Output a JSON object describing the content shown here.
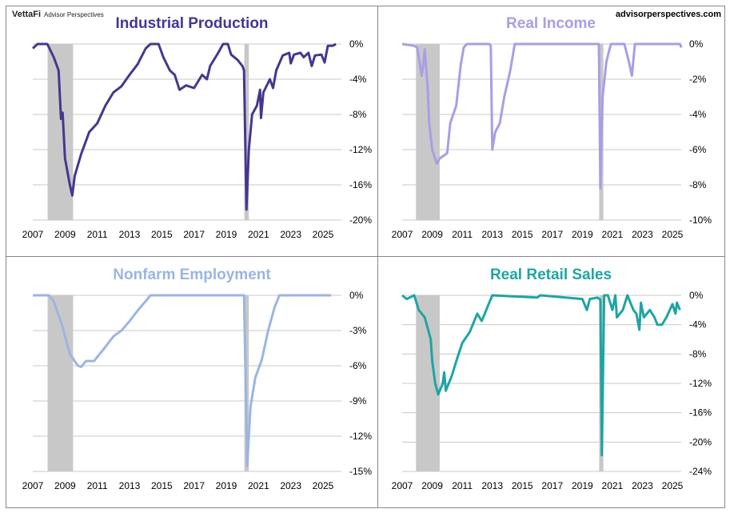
{
  "brand": {
    "logo": "VettaFi",
    "tagline": "Advisor Perspectives",
    "site": "advisorperspectives.com"
  },
  "recessions": [
    [
      2007.92,
      2009.5
    ],
    [
      2020.12,
      2020.4
    ]
  ],
  "chart_data": [
    {
      "type": "line",
      "title": "Industrial Production",
      "color": "#43388e",
      "xlim": [
        2007,
        2025.9
      ],
      "ylim": [
        -20,
        0
      ],
      "yticks": [
        0,
        -4,
        -8,
        -12,
        -16,
        -20
      ],
      "ytick_labels": [
        "0%",
        "-4%",
        "-8%",
        "-12%",
        "-16%",
        "-20%"
      ],
      "xticks": [
        "2007",
        "2009",
        "2011",
        "2013",
        "2015",
        "2017",
        "2019",
        "2021",
        "2023",
        "2025"
      ],
      "x": [
        2007,
        2007.3,
        2007.9,
        2008.3,
        2008.6,
        2008.75,
        2008.85,
        2009.0,
        2009.3,
        2009.45,
        2009.6,
        2010,
        2010.5,
        2011,
        2011.5,
        2012,
        2012.5,
        2013,
        2013.5,
        2014,
        2014.3,
        2014.8,
        2015.1,
        2015.5,
        2015.8,
        2016.1,
        2016.5,
        2017,
        2017.5,
        2017.8,
        2018,
        2018.5,
        2018.8,
        2019.1,
        2019.3,
        2019.7,
        2020.0,
        2020.1,
        2020.25,
        2020.4,
        2020.6,
        2020.9,
        2021.1,
        2021.15,
        2021.3,
        2021.7,
        2021.9,
        2022.1,
        2022.5,
        2022.9,
        2023.0,
        2023.2,
        2023.6,
        2023.8,
        2024.1,
        2024.3,
        2024.5,
        2024.9,
        2025.1,
        2025.3,
        2025.6,
        2025.8
      ],
      "y": [
        -0.5,
        0,
        0,
        -1.5,
        -3,
        -8.5,
        -7.8,
        -13,
        -16,
        -17.2,
        -15,
        -12.5,
        -10,
        -9,
        -7,
        -5.5,
        -4.8,
        -3.5,
        -2.3,
        -0.5,
        0,
        0,
        -1.5,
        -3,
        -3.5,
        -5.2,
        -4.7,
        -5,
        -3.5,
        -4,
        -2.5,
        -1,
        0,
        0,
        -1.2,
        -1.8,
        -2.5,
        -3,
        -18.8,
        -12,
        -8,
        -7,
        -5.2,
        -8.4,
        -5.5,
        -4,
        -5,
        -3,
        -1.3,
        -1,
        -2.2,
        -1.2,
        -1,
        -1.5,
        -1,
        -2.5,
        -1.3,
        -1.2,
        -2.1,
        -0.2,
        -0.2,
        0
      ]
    },
    {
      "type": "line",
      "title": "Real Income",
      "color": "#a99ee3",
      "xlim": [
        2007,
        2025.9
      ],
      "ylim": [
        -10,
        0
      ],
      "yticks": [
        0,
        -2,
        -4,
        -6,
        -8,
        -10
      ],
      "ytick_labels": [
        "0%",
        "-2%",
        "-4%",
        "-6%",
        "-8%",
        "-10%"
      ],
      "xticks": [
        "2007",
        "2009",
        "2011",
        "2013",
        "2015",
        "2017",
        "2019",
        "2021",
        "2023",
        "2025"
      ],
      "x": [
        2007,
        2007.8,
        2008.0,
        2008.3,
        2008.4,
        2008.5,
        2008.7,
        2008.8,
        2009,
        2009.3,
        2009.5,
        2010,
        2010.2,
        2010.6,
        2010.9,
        2011.1,
        2011.3,
        2012.8,
        2012.9,
        2013.0,
        2013.2,
        2013.5,
        2013.8,
        2014.2,
        2014.5,
        2020.1,
        2020.2,
        2020.35,
        2020.6,
        2020.9,
        2021.8,
        2022.1,
        2022.3,
        2022.5,
        2025.5,
        2025.6
      ],
      "y": [
        0,
        -0.1,
        -0.2,
        -1.8,
        -1.2,
        -0.3,
        -2.5,
        -4.5,
        -6,
        -6.8,
        -6.5,
        -6.2,
        -4.5,
        -3.5,
        -1.2,
        -0.2,
        0,
        0,
        -0.1,
        -6,
        -5,
        -4.5,
        -3,
        -1.5,
        0,
        0,
        -8.2,
        -3,
        -1,
        0,
        0,
        -1,
        -1.8,
        0,
        0,
        -0.2
      ]
    },
    {
      "type": "line",
      "title": "Nonfarm Employment",
      "color": "#9bb5e2",
      "xlim": [
        2007,
        2025.9
      ],
      "ylim": [
        -15,
        0
      ],
      "yticks": [
        0,
        -3,
        -6,
        -9,
        -12,
        -15
      ],
      "ytick_labels": [
        "0%",
        "-3%",
        "-6%",
        "-9%",
        "-12%",
        "-15%"
      ],
      "xticks": [
        "2007",
        "2009",
        "2011",
        "2013",
        "2015",
        "2017",
        "2019",
        "2021",
        "2023",
        "2025"
      ],
      "x": [
        2007,
        2008,
        2008.3,
        2008.8,
        2009.3,
        2009.8,
        2010,
        2010.3,
        2010.8,
        2011.5,
        2012,
        2012.5,
        2013,
        2013.5,
        2014,
        2014.3,
        2020.1,
        2020.3,
        2020.5,
        2020.8,
        2021.2,
        2021.6,
        2022,
        2022.3,
        2025.5
      ],
      "y": [
        0,
        0,
        -0.5,
        -2.5,
        -5,
        -6,
        -6.1,
        -5.6,
        -5.6,
        -4.4,
        -3.5,
        -3,
        -2.2,
        -1.3,
        -0.5,
        0,
        0,
        -14.5,
        -9.5,
        -7,
        -5.5,
        -3,
        -1,
        0,
        0
      ]
    },
    {
      "type": "line",
      "title": "Real Retail Sales",
      "color": "#1fa4a4",
      "xlim": [
        2007,
        2025.9
      ],
      "ylim": [
        -24,
        0
      ],
      "yticks": [
        0,
        -4,
        -8,
        -12,
        -16,
        -20,
        -24
      ],
      "ytick_labels": [
        "0%",
        "-4%",
        "-8%",
        "-12%",
        "-16%",
        "-20%",
        "-24%"
      ],
      "xticks": [
        "2007",
        "2009",
        "2011",
        "2013",
        "2015",
        "2017",
        "2019",
        "2021",
        "2023",
        "2025"
      ],
      "x": [
        2007,
        2007.3,
        2007.8,
        2008.1,
        2008.5,
        2008.9,
        2009.0,
        2009.2,
        2009.4,
        2009.7,
        2009.8,
        2009.9,
        2010.3,
        2010.6,
        2011,
        2011.5,
        2012,
        2012.3,
        2012.8,
        2013,
        2016,
        2016.2,
        2019,
        2019.3,
        2019.5,
        2020.0,
        2020.2,
        2020.3,
        2020.45,
        2020.7,
        2021.0,
        2021.2,
        2021.3,
        2021.7,
        2022.0,
        2022.4,
        2022.6,
        2022.8,
        2022.9,
        2023.1,
        2023.5,
        2023.8,
        2024,
        2024.3,
        2024.6,
        2025,
        2025.2,
        2025.3,
        2025.5
      ],
      "y": [
        0,
        -0.5,
        0,
        -2,
        -3,
        -6,
        -9,
        -12,
        -13.5,
        -12,
        -10.5,
        -13,
        -11,
        -9,
        -6.5,
        -5,
        -2.5,
        -3.5,
        -1,
        0,
        -0.3,
        0,
        -0.5,
        -2,
        -0.5,
        -0.3,
        -0.6,
        -21.8,
        0,
        0,
        -2,
        0,
        -3,
        -2,
        0,
        -2,
        -2.5,
        -4.7,
        -1,
        -3,
        -2,
        -3,
        -4,
        -4,
        -3,
        -1.2,
        -2.5,
        -1,
        -2
      ]
    }
  ]
}
